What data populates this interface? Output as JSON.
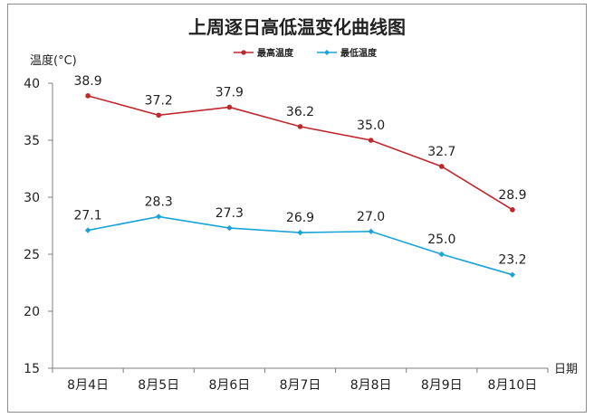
{
  "chart_data": {
    "type": "line",
    "title": "上周逐日高低温变化曲线图",
    "ylabel": "温度(°C)",
    "xlabel": "日期",
    "categories": [
      "8月4日",
      "8月5日",
      "8月6日",
      "8月7日",
      "8月8日",
      "8月9日",
      "8月10日"
    ],
    "ylim": [
      15,
      40
    ],
    "yticks": [
      15,
      20,
      25,
      30,
      35,
      40
    ],
    "grid": false,
    "legend_position": "top-center",
    "series": [
      {
        "name": "最高温度",
        "color": "#c0272d",
        "values": [
          38.9,
          37.2,
          37.9,
          36.2,
          35.0,
          32.7,
          28.9
        ],
        "labels": [
          "38.9",
          "37.2",
          "37.9",
          "36.2",
          "35.0",
          "32.7",
          "28.9"
        ]
      },
      {
        "name": "最低温度",
        "color": "#1aa3d9",
        "values": [
          27.1,
          28.3,
          27.3,
          26.9,
          27.0,
          25.0,
          23.2
        ],
        "labels": [
          "27.1",
          "28.3",
          "27.3",
          "26.9",
          "27.0",
          "25.0",
          "23.2"
        ]
      }
    ]
  }
}
